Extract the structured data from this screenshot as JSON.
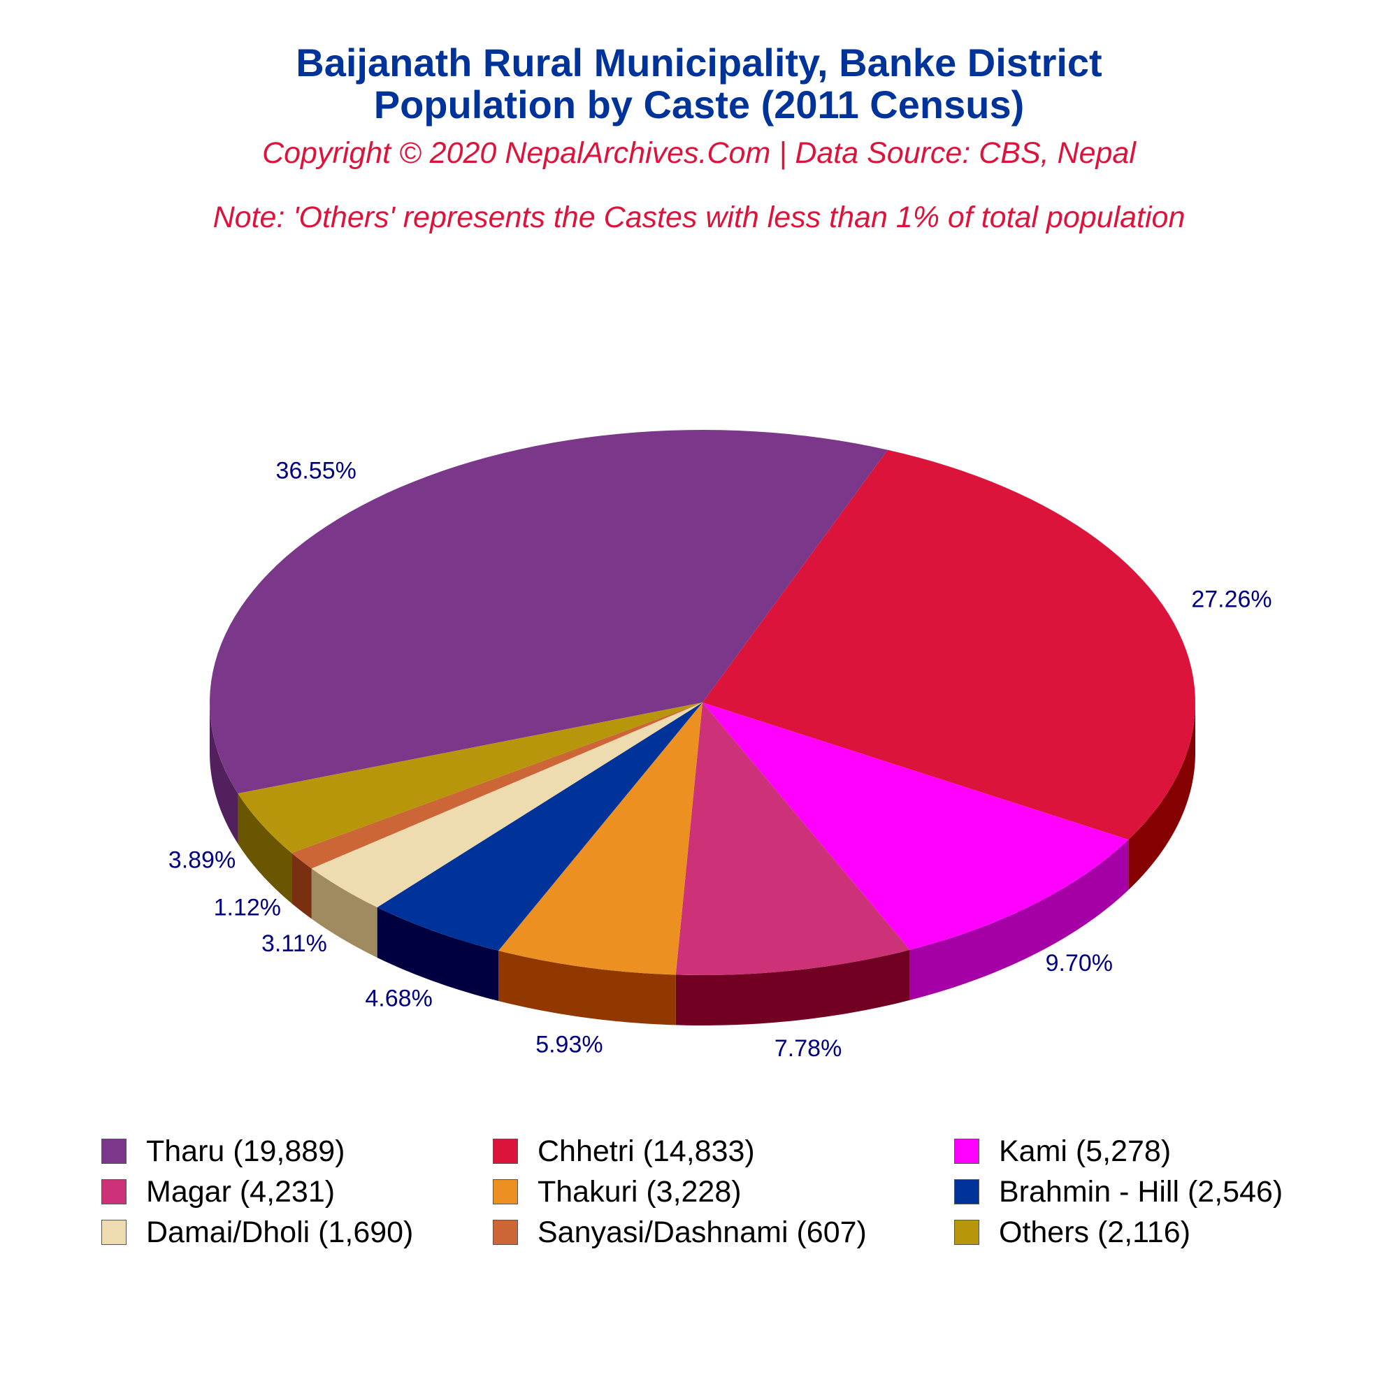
{
  "title": {
    "line1": "Baijanath Rural Municipality, Banke District",
    "line2": "Population by Caste (2011 Census)"
  },
  "copyright": "Copyright © 2020 NepalArchives.Com | Data Source: CBS, Nepal",
  "note": "Note: 'Others' represents the Castes with less than 1% of total population",
  "chart_data": {
    "type": "pie",
    "style": "3d-tilted",
    "legend_position": "bottom",
    "slices": [
      {
        "name": "Tharu",
        "value": 19889,
        "percent_label": "36.55%",
        "legend_label": "Tharu (19,889)",
        "color": "#7b3789",
        "side_color": "#52205c"
      },
      {
        "name": "Chhetri",
        "value": 14833,
        "percent_label": "27.26%",
        "legend_label": "Chhetri (14,833)",
        "color": "#dc143c",
        "side_color": "#850000"
      },
      {
        "name": "Kami",
        "value": 5278,
        "percent_label": "9.70%",
        "legend_label": "Kami (5,278)",
        "color": "#ff00ff",
        "side_color": "#a500a5"
      },
      {
        "name": "Magar",
        "value": 4231,
        "percent_label": "7.78%",
        "legend_label": "Magar (4,231)",
        "color": "#cd3278",
        "side_color": "#720022"
      },
      {
        "name": "Thakuri",
        "value": 3228,
        "percent_label": "5.93%",
        "legend_label": "Thakuri (3,228)",
        "color": "#ec9121",
        "side_color": "#913700"
      },
      {
        "name": "Brahmin - Hill",
        "value": 2546,
        "percent_label": "4.68%",
        "legend_label": "Brahmin - Hill (2,546)",
        "color": "#003399",
        "side_color": "#000040"
      },
      {
        "name": "Damai/Dholi",
        "value": 1690,
        "percent_label": "3.11%",
        "legend_label": "Damai/Dholi (1,690)",
        "color": "#eedbb0",
        "side_color": "#a08a60"
      },
      {
        "name": "Sanyasi/Dashnami",
        "value": 607,
        "percent_label": "1.12%",
        "legend_label": "Sanyasi/Dashnami (607)",
        "color": "#cd6637",
        "side_color": "#7a3010"
      },
      {
        "name": "Others",
        "value": 2116,
        "percent_label": "3.89%",
        "legend_label": "Others (2,116)",
        "color": "#b8960b",
        "side_color": "#6b5600"
      }
    ]
  }
}
